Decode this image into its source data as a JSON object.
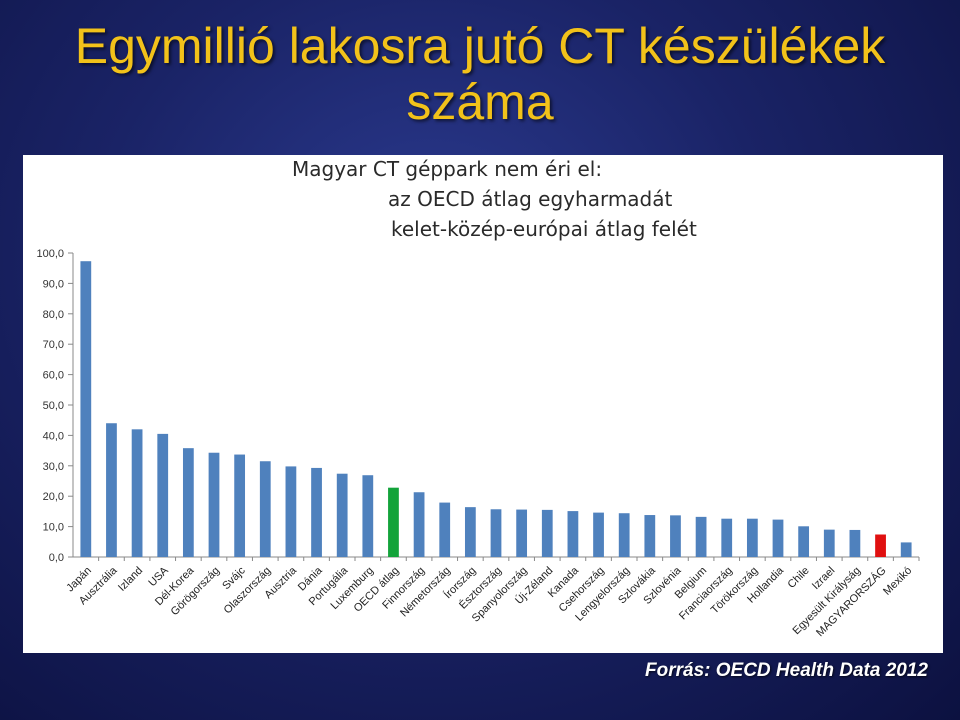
{
  "title_line1": "Egymillió lakosra jutó CT készülékek",
  "title_line2": "száma",
  "note": {
    "line1": "Magyar CT géppark nem éri el:",
    "line2": "az OECD átlag egyharmadát",
    "line3": "kelet-közép-európai átlag felét"
  },
  "source": "Forrás: OECD Health Data 2012",
  "colors": {
    "bar": "#4f81bd",
    "oecd": "#13a33a",
    "hungary": "#e01010",
    "title": "#f2c21a"
  },
  "chart_data": {
    "type": "bar",
    "title": "Egymillió lakosra jutó CT készülékek száma",
    "ylim": [
      0,
      100
    ],
    "yticks": [
      "0,0",
      "10,0",
      "20,0",
      "30,0",
      "40,0",
      "50,0",
      "60,0",
      "70,0",
      "80,0",
      "90,0",
      "100,0"
    ],
    "grid": false,
    "categories": [
      "Japán",
      "Ausztrália",
      "Izland",
      "USA",
      "Dél-Korea",
      "Görögország",
      "Svájc",
      "Olaszország",
      "Ausztria",
      "Dánia",
      "Portugália",
      "Luxemburg",
      "OECD átlag",
      "Finnország",
      "Németország",
      "Írország",
      "Észtország",
      "Spanyolország",
      "Új-Zéland",
      "Kanada",
      "Csehország",
      "Lengyelország",
      "Szlovákia",
      "Szlovénia",
      "Belgium",
      "Franciaország",
      "Törökország",
      "Hollandia",
      "Chile",
      "Izrael",
      "Egyesült Királyság",
      "MAGYARORSZÁG",
      "Mexikó"
    ],
    "values": [
      97.3,
      44.0,
      42.0,
      40.5,
      35.8,
      34.3,
      33.7,
      31.5,
      29.8,
      29.3,
      27.4,
      26.9,
      22.8,
      21.3,
      17.9,
      16.4,
      15.7,
      15.6,
      15.5,
      15.1,
      14.6,
      14.4,
      13.8,
      13.7,
      13.2,
      12.6,
      12.6,
      12.3,
      10.1,
      9.0,
      8.9,
      7.4,
      4.8
    ],
    "highlight": {
      "OECD átlag": "oecd",
      "MAGYARORSZÁG": "hungary"
    }
  }
}
